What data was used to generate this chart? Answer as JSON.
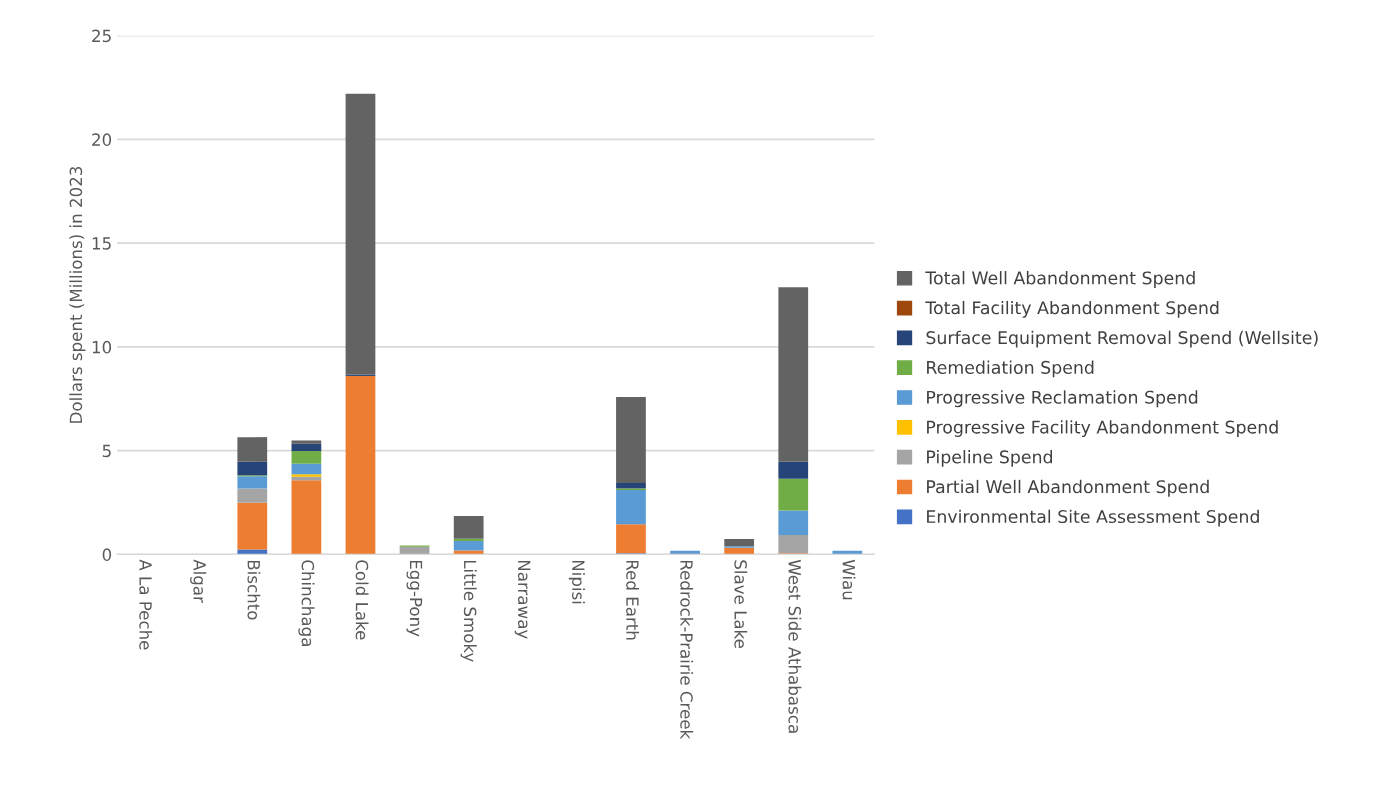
{
  "chart_data": {
    "type": "bar",
    "stacked": true,
    "ylabel": "Dollars spent (Millions) in 2023",
    "categories": [
      "A La Peche",
      "Algar",
      "Bischto",
      "Chinchaga",
      "Cold Lake",
      "Egg-Pony",
      "Little Smoky",
      "Narraway",
      "Nipisi",
      "Red Earth",
      "Redrock-Prairie Creek",
      "Slave Lake",
      "West Side Athabasca",
      "Wiau"
    ],
    "series": [
      {
        "name": "Environmental Site Assessment Spend",
        "color": "#4472c4",
        "values": [
          0,
          0,
          0.24,
          0,
          0,
          0,
          0,
          0,
          0,
          0.06,
          0.06,
          0,
          0,
          0
        ]
      },
      {
        "name": "Partial Well Abandonment Spend",
        "color": "#ed7d31",
        "values": [
          0,
          0,
          2.25,
          3.57,
          8.6,
          0,
          0.19,
          0,
          0,
          1.39,
          0,
          0.32,
          0.06,
          0
        ]
      },
      {
        "name": "Pipeline Spend",
        "color": "#a5a5a5",
        "values": [
          0,
          0,
          0.69,
          0.17,
          0,
          0.37,
          0,
          0,
          0,
          0,
          0,
          0,
          0.87,
          0
        ]
      },
      {
        "name": "Progressive Facility Abandonment Spend",
        "color": "#ffc000",
        "values": [
          0,
          0,
          0,
          0.12,
          0,
          0,
          0,
          0,
          0,
          0,
          0,
          0,
          0,
          0
        ]
      },
      {
        "name": "Progressive Reclamation Spend",
        "color": "#5b9bd5",
        "values": [
          0,
          0,
          0.59,
          0.51,
          0,
          0,
          0.45,
          0,
          0,
          1.65,
          0.11,
          0.07,
          1.19,
          0.17
        ]
      },
      {
        "name": "Remediation Spend",
        "color": "#70ad47",
        "values": [
          0,
          0,
          0.04,
          0.61,
          0,
          0.06,
          0.11,
          0,
          0,
          0.08,
          0,
          0,
          1.52,
          0
        ]
      },
      {
        "name": "Surface Equipment Removal Spend (Wellsite)",
        "color": "#264478",
        "values": [
          0,
          0,
          0.65,
          0.35,
          0.07,
          0,
          0,
          0,
          0,
          0.26,
          0,
          0,
          0.82,
          0
        ]
      },
      {
        "name": "Total Facility Abandonment Spend",
        "color": "#9e480e",
        "values": [
          0,
          0,
          0,
          0,
          0,
          0,
          0,
          0,
          0,
          0,
          0,
          0,
          0,
          0
        ]
      },
      {
        "name": "Total Well Abandonment Spend",
        "color": "#636363",
        "values": [
          0,
          0,
          1.19,
          0.16,
          13.53,
          0,
          1.1,
          0,
          0,
          4.14,
          0,
          0.35,
          8.42,
          0
        ]
      }
    ],
    "ylim": [
      0,
      25
    ],
    "yticks": [
      0,
      5,
      10,
      15,
      20,
      25
    ],
    "grid": "y",
    "legend": "right"
  }
}
